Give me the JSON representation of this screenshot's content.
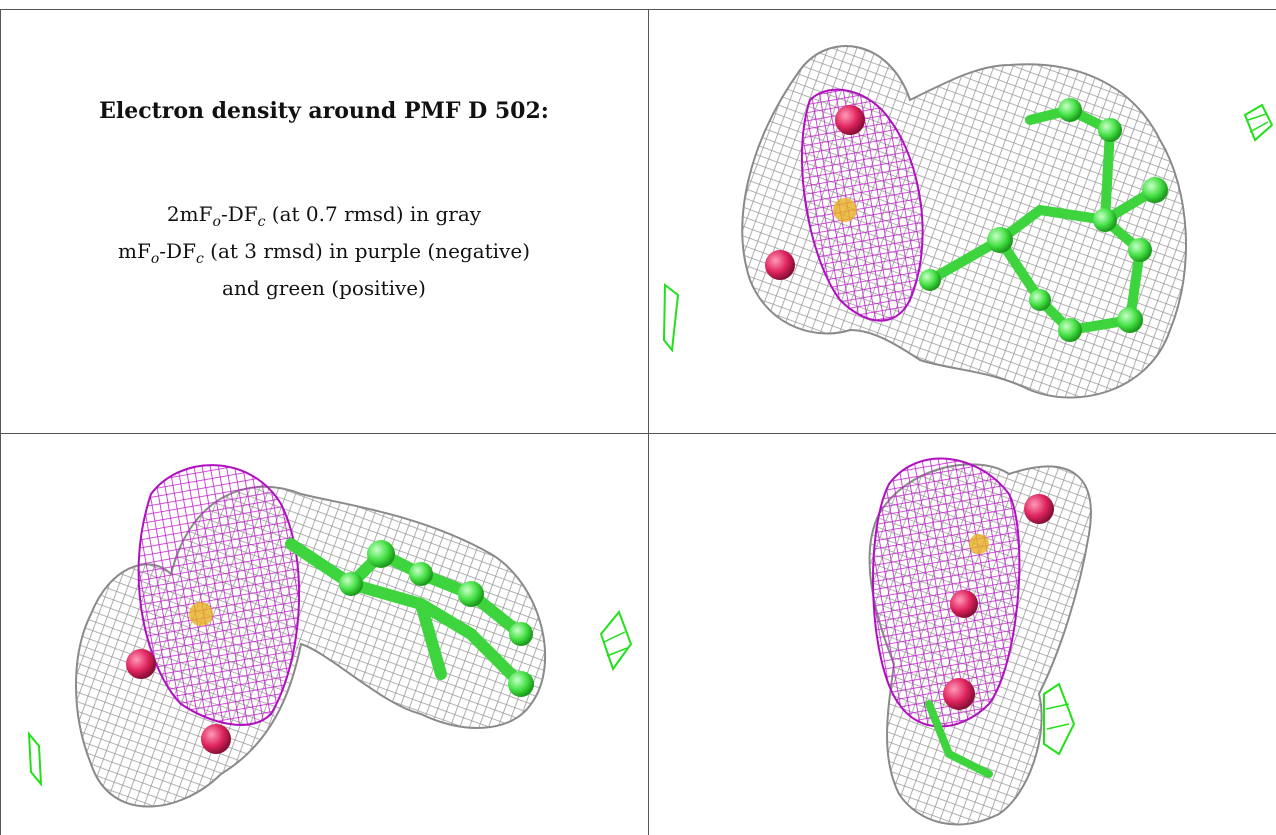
{
  "caption": {
    "title": "Electron density around PMF D 502:",
    "line1_pre": "2mF",
    "line1_sub1": "o",
    "line1_mid": "-DF",
    "line1_sub2": "c",
    "line1_post": " (at 0.7 rmsd) in gray",
    "line2_pre": "mF",
    "line2_sub1": "o",
    "line2_mid": "-DF",
    "line2_sub2": "c",
    "line2_post": " (at 3 rmsd) in purple (negative)",
    "line3": "and green (positive)"
  },
  "colors": {
    "mesh_gray": "#9a9a9a",
    "mesh_purple": "#c21ad0",
    "mesh_green": "#22e01a",
    "atom_green": "#55ee55",
    "atom_red": "#e0245e",
    "atom_yellow": "#e8b020"
  },
  "panels": [
    {
      "name": "view-top-right",
      "description_icon": "density-mesh-image"
    },
    {
      "name": "view-bottom-left",
      "description_icon": "density-mesh-image"
    },
    {
      "name": "view-bottom-right",
      "description_icon": "density-mesh-image"
    }
  ]
}
